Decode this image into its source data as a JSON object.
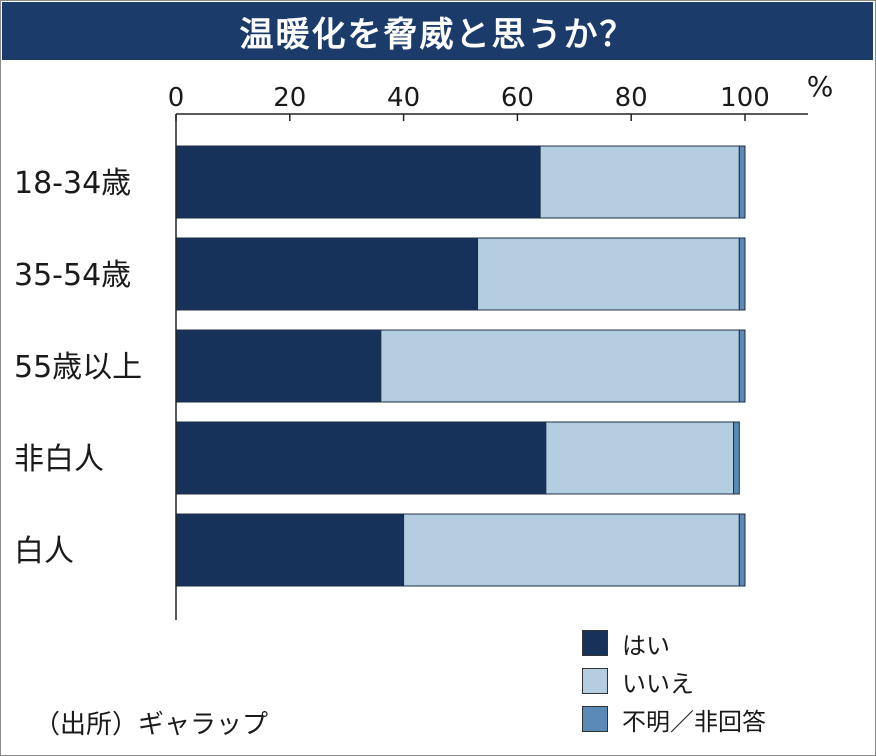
{
  "title": "温暖化を脅威と思うか？",
  "source": "（出所）ギャラップ",
  "colors": {
    "title_bg": "#1b3b6a",
    "yes": "#17325a",
    "no": "#b4cde0",
    "unknown": "#5b8ab8"
  },
  "chart_data": {
    "type": "bar",
    "orientation": "horizontal",
    "stacked": true,
    "title": "温暖化を脅威と思うか？",
    "unit": "%",
    "xlim": [
      0,
      100
    ],
    "ticks": [
      0,
      20,
      40,
      60,
      80,
      100
    ],
    "categories": [
      "18-34歳",
      "35-54歳",
      "55歳以上",
      "非白人",
      "白人"
    ],
    "series": [
      {
        "name": "はい",
        "color": "#17325a",
        "values": [
          64,
          53,
          36,
          65,
          40
        ]
      },
      {
        "name": "いいえ",
        "color": "#b4cde0",
        "values": [
          35,
          46,
          63,
          33,
          59
        ]
      },
      {
        "name": "不明／非回答",
        "color": "#5b8ab8",
        "values": [
          1,
          1,
          1,
          1,
          1
        ]
      }
    ],
    "grid": false,
    "legend_position": "bottom-right"
  }
}
